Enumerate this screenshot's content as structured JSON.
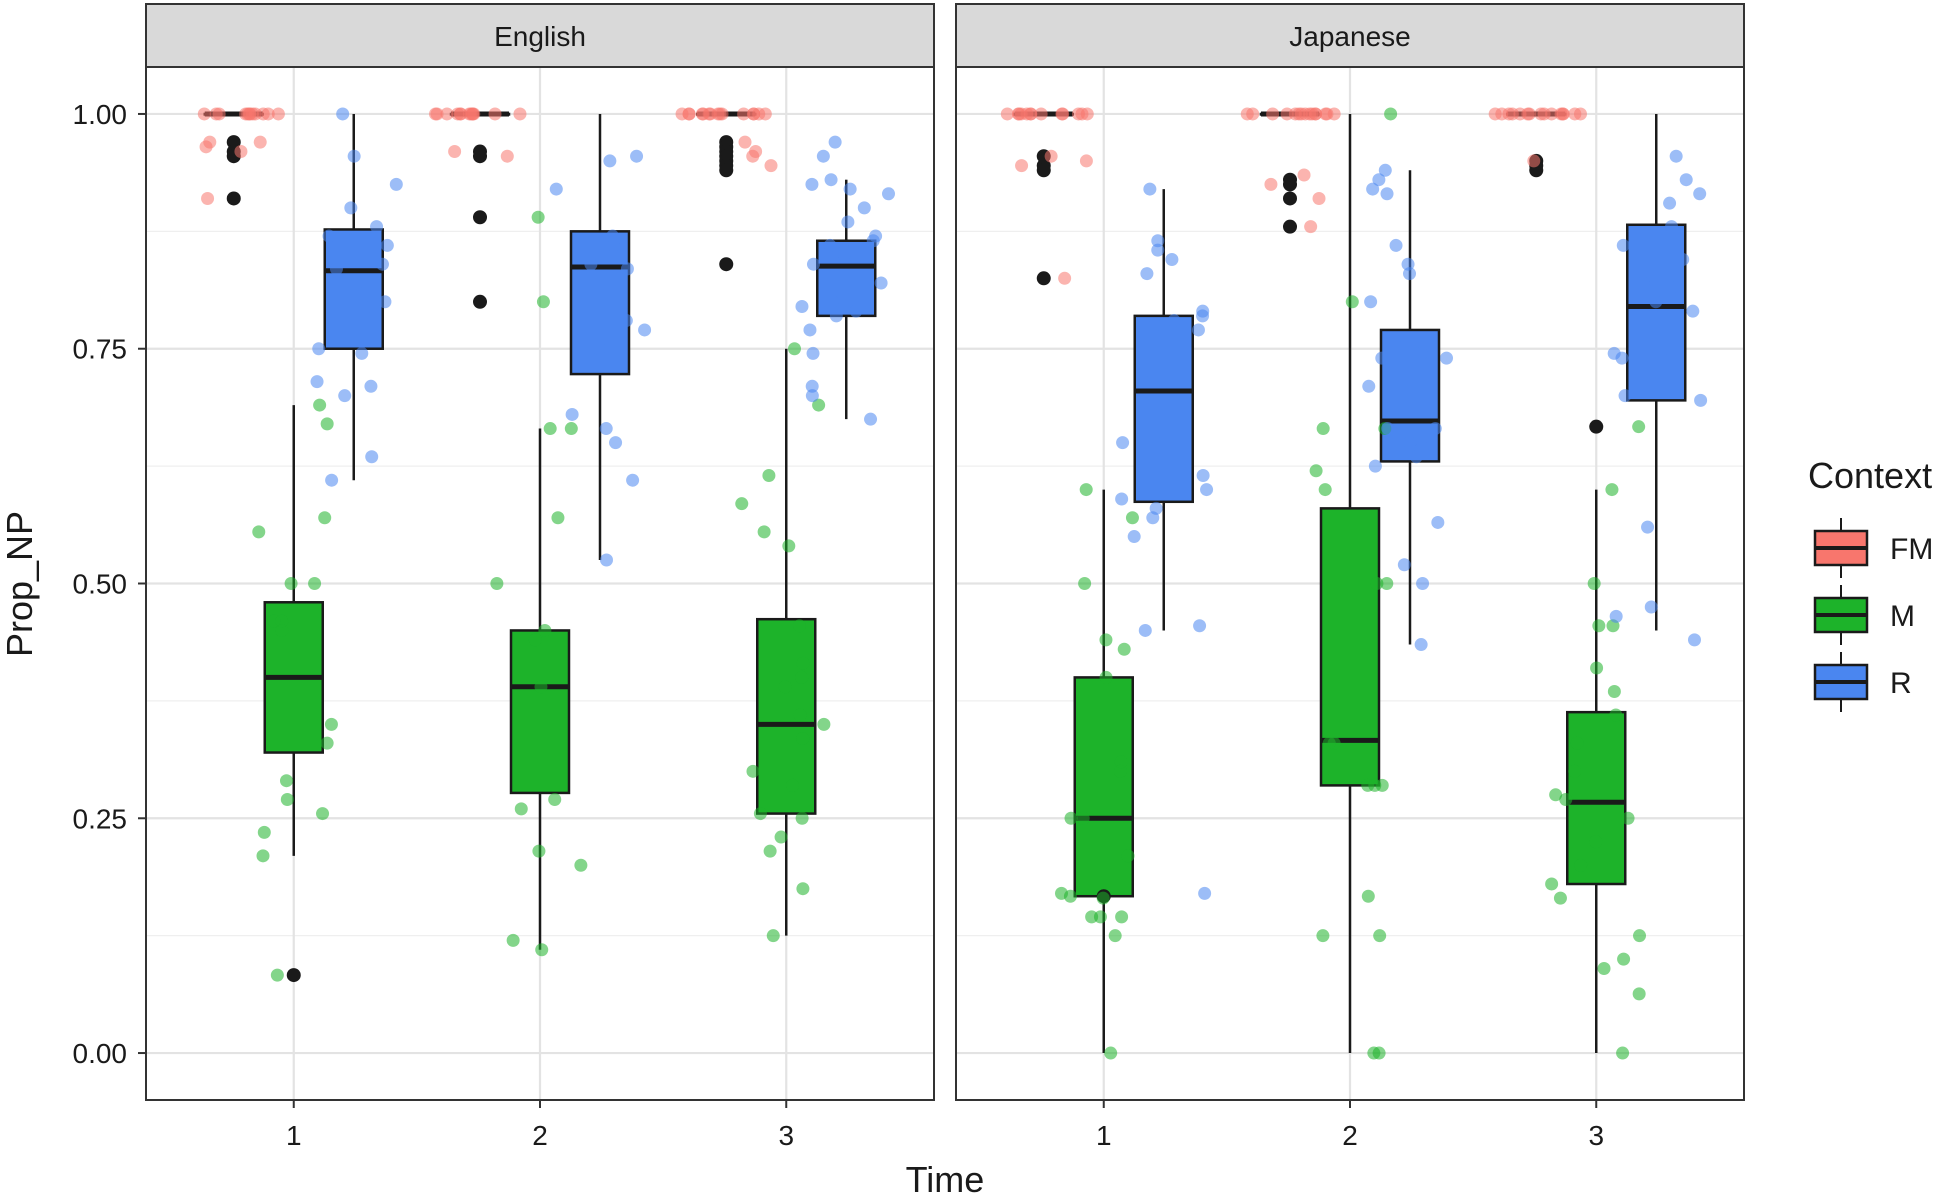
{
  "chart_data": {
    "type": "boxplot",
    "xlabel": "Time",
    "ylabel": "Prop_NP",
    "ylim": [
      -0.05,
      1.05
    ],
    "y_ticks": [
      "0.00",
      "0.25",
      "0.50",
      "0.75",
      "1.00"
    ],
    "y_tick_values": [
      0,
      0.25,
      0.5,
      0.75,
      1.0
    ],
    "x_categories": [
      "1",
      "2",
      "3"
    ],
    "grid": true,
    "legend": {
      "title": "Context",
      "position": "right",
      "items": [
        {
          "name": "FM",
          "color": "#f8766d"
        },
        {
          "name": "M",
          "color": "#1db32a"
        },
        {
          "name": "R",
          "color": "#4a86f0"
        }
      ]
    },
    "panels": [
      {
        "name": "English",
        "groups": [
          {
            "time": "1",
            "context": "FM",
            "box": {
              "min": 1.0,
              "q1": 1.0,
              "median": 1.0,
              "q3": 1.0,
              "max": 1.0
            },
            "outliers": [
              0.97,
              0.96,
              0.955,
              0.91
            ],
            "points": [
              1.0,
              1.0,
              1.0,
              1.0,
              1.0,
              1.0,
              1.0,
              1.0,
              1.0,
              1.0,
              1.0,
              1.0,
              0.97,
              0.965,
              0.96,
              0.97,
              0.91
            ]
          },
          {
            "time": "1",
            "context": "M",
            "box": {
              "min": 0.21,
              "q1": 0.32,
              "median": 0.4,
              "q3": 0.48,
              "max": 0.69
            },
            "outliers": [
              0.083
            ],
            "points": [
              0.69,
              0.67,
              0.57,
              0.555,
              0.5,
              0.5,
              0.46,
              0.46,
              0.45,
              0.35,
              0.33,
              0.29,
              0.27,
              0.255,
              0.235,
              0.21,
              0.083
            ]
          },
          {
            "time": "1",
            "context": "R",
            "box": {
              "min": 0.61,
              "q1": 0.75,
              "median": 0.833,
              "q3": 0.877,
              "max": 1.0
            },
            "outliers": [],
            "points": [
              1.0,
              0.955,
              0.925,
              0.9,
              0.88,
              0.87,
              0.865,
              0.86,
              0.84,
              0.835,
              0.82,
              0.8,
              0.795,
              0.75,
              0.745,
              0.715,
              0.71,
              0.7,
              0.635,
              0.61
            ]
          },
          {
            "time": "2",
            "context": "FM",
            "box": {
              "min": 1.0,
              "q1": 1.0,
              "median": 1.0,
              "q3": 1.0,
              "max": 1.0
            },
            "outliers": [
              0.96,
              0.955,
              0.89,
              0.8
            ],
            "points": [
              1.0,
              1.0,
              1.0,
              1.0,
              1.0,
              1.0,
              1.0,
              1.0,
              1.0,
              1.0,
              1.0,
              1.0,
              1.0,
              0.96,
              0.955
            ]
          },
          {
            "time": "2",
            "context": "M",
            "box": {
              "min": 0.11,
              "q1": 0.277,
              "median": 0.39,
              "q3": 0.45,
              "max": 0.665
            },
            "outliers": [],
            "points": [
              0.89,
              0.8,
              0.665,
              0.665,
              0.57,
              0.5,
              0.45,
              0.44,
              0.39,
              0.27,
              0.26,
              0.215,
              0.2,
              0.12,
              0.11
            ]
          },
          {
            "time": "2",
            "context": "R",
            "box": {
              "min": 0.525,
              "q1": 0.723,
              "median": 0.837,
              "q3": 0.875,
              "max": 1.0
            },
            "outliers": [],
            "points": [
              0.955,
              0.95,
              0.92,
              0.87,
              0.86,
              0.84,
              0.835,
              0.82,
              0.79,
              0.78,
              0.77,
              0.75,
              0.68,
              0.665,
              0.65,
              0.61,
              0.525
            ]
          },
          {
            "time": "3",
            "context": "FM",
            "box": {
              "min": 1.0,
              "q1": 1.0,
              "median": 1.0,
              "q3": 1.0,
              "max": 1.0
            },
            "outliers": [
              0.97,
              0.965,
              0.96,
              0.955,
              0.95,
              0.945,
              0.94,
              0.84
            ],
            "points": [
              1.0,
              1.0,
              1.0,
              1.0,
              1.0,
              1.0,
              1.0,
              1.0,
              1.0,
              1.0,
              1.0,
              1.0,
              1.0,
              1.0,
              1.0,
              0.97,
              0.96,
              0.955,
              0.945
            ]
          },
          {
            "time": "3",
            "context": "M",
            "box": {
              "min": 0.125,
              "q1": 0.255,
              "median": 0.35,
              "q3": 0.462,
              "max": 0.75
            },
            "outliers": [],
            "points": [
              0.75,
              0.69,
              0.615,
              0.585,
              0.555,
              0.54,
              0.455,
              0.415,
              0.4,
              0.39,
              0.36,
              0.35,
              0.335,
              0.3,
              0.285,
              0.255,
              0.25,
              0.23,
              0.215,
              0.175,
              0.125
            ]
          },
          {
            "time": "3",
            "context": "R",
            "box": {
              "min": 0.675,
              "q1": 0.785,
              "median": 0.838,
              "q3": 0.865,
              "max": 0.93
            },
            "outliers": [],
            "points": [
              0.97,
              0.955,
              0.93,
              0.925,
              0.92,
              0.915,
              0.9,
              0.885,
              0.87,
              0.865,
              0.86,
              0.855,
              0.85,
              0.84,
              0.82,
              0.8,
              0.795,
              0.79,
              0.785,
              0.77,
              0.745,
              0.71,
              0.7,
              0.675
            ]
          }
        ]
      },
      {
        "name": "Japanese",
        "groups": [
          {
            "time": "1",
            "context": "FM",
            "box": {
              "min": 1.0,
              "q1": 1.0,
              "median": 1.0,
              "q3": 1.0,
              "max": 1.0
            },
            "outliers": [
              0.955,
              0.945,
              0.94,
              0.825
            ],
            "points": [
              1.0,
              1.0,
              1.0,
              1.0,
              1.0,
              1.0,
              1.0,
              1.0,
              1.0,
              1.0,
              1.0,
              1.0,
              1.0,
              0.955,
              0.95,
              0.945,
              0.825
            ]
          },
          {
            "time": "1",
            "context": "M",
            "box": {
              "min": 0.0,
              "q1": 0.167,
              "median": 0.25,
              "q3": 0.4,
              "max": 0.6
            },
            "outliers": [
              0.167
            ],
            "points": [
              0.6,
              0.57,
              0.5,
              0.44,
              0.43,
              0.4,
              0.31,
              0.3,
              0.25,
              0.25,
              0.21,
              0.17,
              0.167,
              0.165,
              0.145,
              0.145,
              0.145,
              0.125,
              0.0
            ]
          },
          {
            "time": "1",
            "context": "R",
            "box": {
              "min": 0.45,
              "q1": 0.587,
              "median": 0.705,
              "q3": 0.785,
              "max": 0.92
            },
            "outliers": [],
            "points": [
              0.92,
              0.865,
              0.855,
              0.845,
              0.83,
              0.79,
              0.785,
              0.78,
              0.775,
              0.77,
              0.715,
              0.65,
              0.65,
              0.625,
              0.615,
              0.6,
              0.59,
              0.58,
              0.57,
              0.55,
              0.455,
              0.45,
              0.17
            ]
          },
          {
            "time": "2",
            "context": "FM",
            "box": {
              "min": 1.0,
              "q1": 1.0,
              "median": 1.0,
              "q3": 1.0,
              "max": 1.0
            },
            "outliers": [
              0.93,
              0.925,
              0.91,
              0.88
            ],
            "points": [
              1.0,
              1.0,
              1.0,
              1.0,
              1.0,
              1.0,
              1.0,
              1.0,
              1.0,
              1.0,
              1.0,
              1.0,
              1.0,
              1.0,
              1.0,
              0.935,
              0.925,
              0.91,
              0.88
            ]
          },
          {
            "time": "2",
            "context": "M",
            "box": {
              "min": 0.0,
              "q1": 0.285,
              "median": 0.333,
              "q3": 0.58,
              "max": 1.0
            },
            "outliers": [],
            "points": [
              1.0,
              0.8,
              0.665,
              0.665,
              0.62,
              0.6,
              0.5,
              0.5,
              0.33,
              0.33,
              0.285,
              0.285,
              0.285,
              0.167,
              0.125,
              0.125,
              0.0,
              0.0
            ]
          },
          {
            "time": "2",
            "context": "R",
            "box": {
              "min": 0.435,
              "q1": 0.63,
              "median": 0.673,
              "q3": 0.77,
              "max": 0.94
            },
            "outliers": [],
            "points": [
              0.94,
              0.93,
              0.92,
              0.915,
              0.86,
              0.84,
              0.83,
              0.8,
              0.76,
              0.745,
              0.74,
              0.74,
              0.71,
              0.665,
              0.665,
              0.65,
              0.645,
              0.635,
              0.625,
              0.565,
              0.52,
              0.5,
              0.435
            ]
          },
          {
            "time": "3",
            "context": "FM",
            "box": {
              "min": 1.0,
              "q1": 1.0,
              "median": 1.0,
              "q3": 1.0,
              "max": 1.0
            },
            "outliers": [
              0.95,
              0.945,
              0.94
            ],
            "points": [
              1.0,
              1.0,
              1.0,
              1.0,
              1.0,
              1.0,
              1.0,
              1.0,
              1.0,
              1.0,
              1.0,
              1.0,
              1.0,
              1.0,
              1.0,
              0.95
            ]
          },
          {
            "time": "3",
            "context": "M",
            "box": {
              "min": 0.0,
              "q1": 0.18,
              "median": 0.267,
              "q3": 0.363,
              "max": 0.6
            },
            "outliers": [
              0.667
            ],
            "points": [
              0.667,
              0.6,
              0.5,
              0.455,
              0.455,
              0.41,
              0.385,
              0.36,
              0.33,
              0.3,
              0.275,
              0.27,
              0.25,
              0.225,
              0.2,
              0.18,
              0.165,
              0.125,
              0.1,
              0.09,
              0.063,
              0.0
            ]
          },
          {
            "time": "3",
            "context": "R",
            "box": {
              "min": 0.45,
              "q1": 0.695,
              "median": 0.795,
              "q3": 0.882,
              "max": 1.0
            },
            "outliers": [],
            "points": [
              0.955,
              0.93,
              0.915,
              0.905,
              0.88,
              0.86,
              0.845,
              0.82,
              0.815,
              0.8,
              0.79,
              0.785,
              0.745,
              0.74,
              0.74,
              0.7,
              0.695,
              0.56,
              0.475,
              0.465,
              0.44
            ]
          }
        ]
      }
    ]
  }
}
